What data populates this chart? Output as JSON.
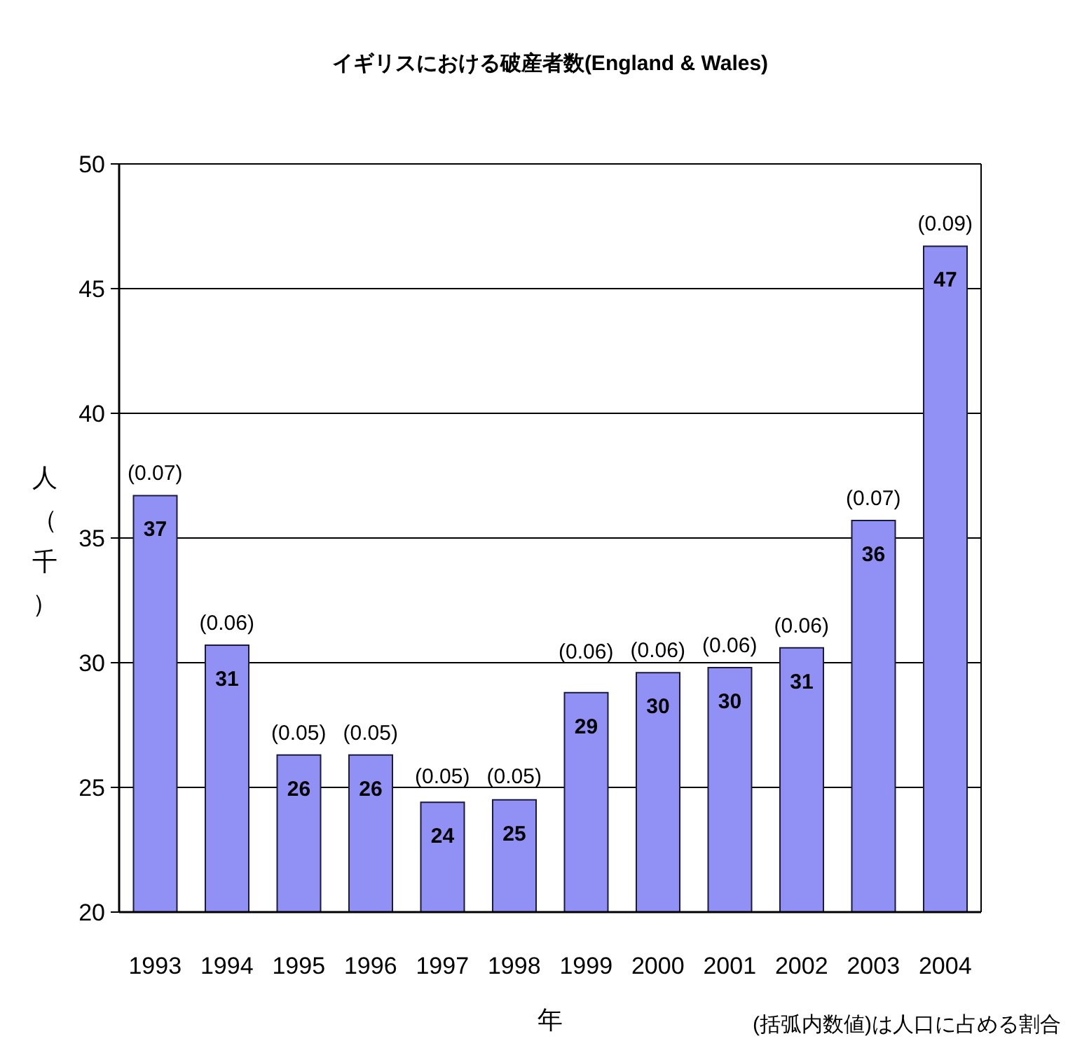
{
  "chart_data": {
    "type": "bar",
    "title": "イギリスにおける破産者数(England & Wales)",
    "xlabel": "年",
    "ylabel": "人（千）",
    "categories": [
      "1993",
      "1994",
      "1995",
      "1996",
      "1997",
      "1998",
      "1999",
      "2000",
      "2001",
      "2002",
      "2003",
      "2004"
    ],
    "values": [
      36.7,
      30.7,
      26.3,
      26.3,
      24.4,
      24.5,
      28.8,
      29.6,
      29.8,
      30.6,
      35.7,
      46.7
    ],
    "value_labels": [
      "37",
      "31",
      "26",
      "26",
      "24",
      "25",
      "29",
      "30",
      "30",
      "31",
      "36",
      "47"
    ],
    "color": "#9090f5",
    "ylim": [
      20,
      50
    ],
    "yticks": [
      20,
      25,
      30,
      35,
      40,
      45,
      50
    ],
    "grid": "y",
    "annotations": [
      {
        "text": "(0.07)",
        "x": "1993",
        "y": 36.7
      },
      {
        "text": "(0.06)",
        "x": "1994",
        "y": 30.7
      },
      {
        "text": "(0.05)",
        "x": "1995",
        "y": 26.3
      },
      {
        "text": "(0.05)",
        "x": "1996",
        "y": 26.3
      },
      {
        "text": "(0.05)",
        "x": "1997",
        "y": 24.4
      },
      {
        "text": "(0.05)",
        "x": "1998",
        "y": 24.5
      },
      {
        "text": "(0.06)",
        "x": "1999",
        "y": 28.8
      },
      {
        "text": "(0.06)",
        "x": "2000",
        "y": 29.6
      },
      {
        "text": "(0.06)",
        "x": "2001",
        "y": 29.8
      },
      {
        "text": "(0.06)",
        "x": "2002",
        "y": 30.6
      },
      {
        "text": "(0.07)",
        "x": "2003",
        "y": 35.7
      },
      {
        "text": "(0.09)",
        "x": "2004",
        "y": 46.7
      },
      "(括弧内数値)は人口に占める割合"
    ]
  }
}
